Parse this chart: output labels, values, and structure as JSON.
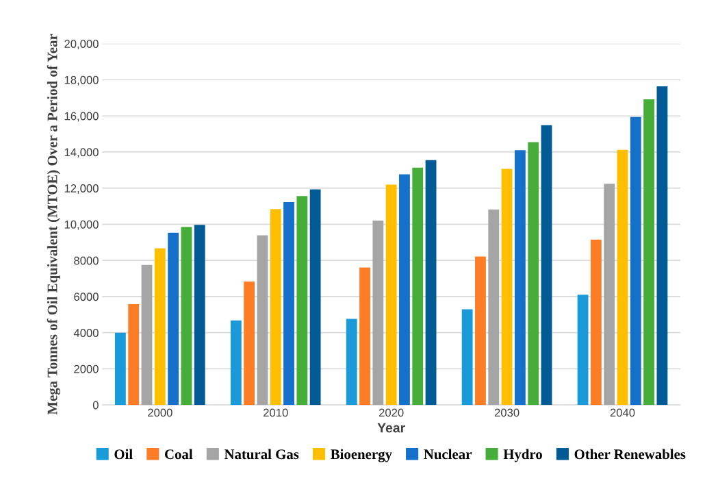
{
  "chart_data": {
    "type": "bar",
    "xlabel": "Year",
    "ylabel": "Mega Tonnes of Oil Equivalent (MTOE) Over a Period of Year",
    "categories": [
      "2000",
      "2010",
      "2020",
      "2030",
      "2040"
    ],
    "series": [
      {
        "name": "Oil",
        "color": "#1a9ad8",
        "values": [
          4000,
          4680,
          4770,
          5300,
          6100
        ]
      },
      {
        "name": "Coal",
        "color": "#fd7c26",
        "values": [
          5580,
          6830,
          7610,
          8220,
          9150
        ]
      },
      {
        "name": "Natural Gas",
        "color": "#a5a5a5",
        "values": [
          7750,
          9390,
          10210,
          10820,
          12240
        ]
      },
      {
        "name": "Bioenergy",
        "color": "#ffbf00",
        "values": [
          8670,
          10840,
          12200,
          13070,
          14120
        ]
      },
      {
        "name": "Nuclear",
        "color": "#1570c9",
        "values": [
          9530,
          11230,
          12770,
          14100,
          15940
        ]
      },
      {
        "name": "Hydro",
        "color": "#46ad3a",
        "values": [
          9860,
          11560,
          13140,
          14550,
          16920
        ]
      },
      {
        "name": "Other Renewables",
        "color": "#005b94",
        "values": [
          9970,
          11930,
          13550,
          15490,
          17640
        ]
      }
    ],
    "ylim": [
      0,
      20000
    ],
    "yticks": [
      0,
      2000,
      4000,
      6000,
      8000,
      {
        "value": 10000,
        "label": "10,000"
      },
      {
        "value": 12000,
        "label": "12,000"
      },
      {
        "value": 14000,
        "label": "14,000"
      },
      {
        "value": 16000,
        "label": "16,000"
      },
      {
        "value": 18000,
        "label": "18,000"
      },
      {
        "value": 20000,
        "label": "20,000"
      }
    ],
    "grid": "y",
    "legend": "bottom"
  }
}
